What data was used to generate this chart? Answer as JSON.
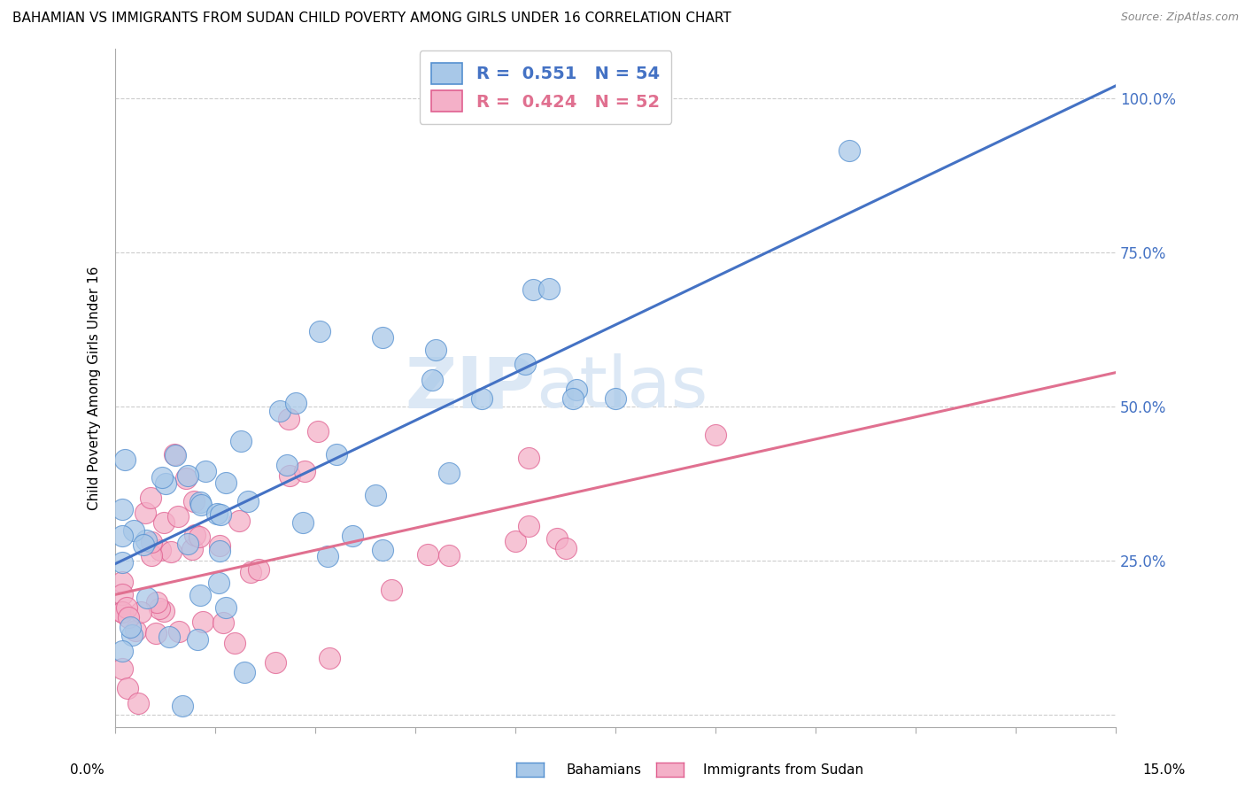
{
  "title": "BAHAMIAN VS IMMIGRANTS FROM SUDAN CHILD POVERTY AMONG GIRLS UNDER 16 CORRELATION CHART",
  "source": "Source: ZipAtlas.com",
  "ylabel": "Child Poverty Among Girls Under 16",
  "xmin": 0.0,
  "xmax": 0.15,
  "ymin": -0.02,
  "ymax": 1.08,
  "blue_R": 0.551,
  "blue_N": 54,
  "pink_R": 0.424,
  "pink_N": 52,
  "blue_color": "#a8c8e8",
  "pink_color": "#f4b0c8",
  "blue_edge_color": "#5590d0",
  "pink_edge_color": "#e06090",
  "blue_line_color": "#4472c4",
  "pink_line_color": "#e07090",
  "watermark": "ZIPatlas",
  "watermark_color": "#dce8f5",
  "legend_label_blue": "Bahamians",
  "legend_label_pink": "Immigrants from Sudan",
  "blue_line_x0": 0.0,
  "blue_line_y0": 0.245,
  "blue_line_x1": 0.15,
  "blue_line_y1": 1.02,
  "pink_line_x0": 0.0,
  "pink_line_y0": 0.195,
  "pink_line_x1": 0.15,
  "pink_line_y1": 0.555,
  "yticks": [
    0.0,
    0.25,
    0.5,
    0.75,
    1.0
  ],
  "ytick_labels": [
    "",
    "25.0%",
    "50.0%",
    "75.0%",
    "100.0%"
  ]
}
